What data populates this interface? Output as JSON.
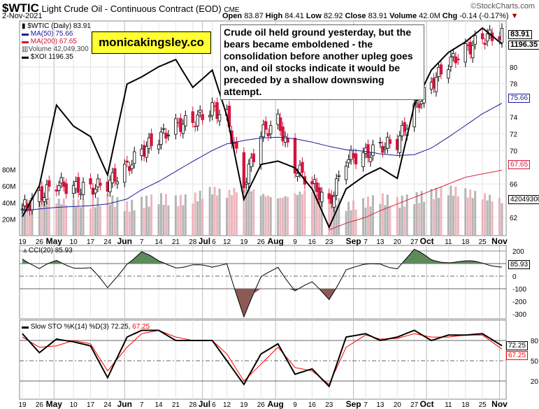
{
  "header": {
    "symbol": "$WTIC",
    "name": "Light Crude Oil - Continuous Contract (EOD)",
    "exchange": "CME",
    "date": "2-Nov-2021",
    "brand": "©StockCharts.com",
    "open_label": "Open",
    "open": "83.87",
    "high_label": "High",
    "high": "84.41",
    "low_label": "Low",
    "low": "82.92",
    "close_label": "Close",
    "close": "83.91",
    "volume_label": "Volume",
    "volume": "42.0M",
    "chg_label": "Chg",
    "chg": "-0.14 (-0.17%)"
  },
  "legend": {
    "price": "$WTIC (Daily) 83.91",
    "ma50": "MA(50) 75.66",
    "ma200": "MA(200) 67.65",
    "volume": "Volume 42,049,300",
    "xoi": "$XOI 1196.35"
  },
  "logo_text": "monicakingsley.co",
  "annotation": "Crude oil held ground yesterday, but the bears became emboldened - the consolidation before another upleg goes on, and oil stocks indicate it would be preceded by a shallow downswing attempt.",
  "tags": {
    "price": "83.91",
    "xoi": "1196.35",
    "ma50": "75.66",
    "ma200": "67.65",
    "volume": "42049300",
    "cci": "85.93",
    "k": "72.25",
    "d": "67.25"
  },
  "colors": {
    "up": "#000000",
    "down": "#d4143c",
    "ma50": "#1a1a9e",
    "ma200": "#e0203c",
    "vol_up": "#a8a8a8",
    "vol_down": "#eaa8b0",
    "cci_pos": "#5d8a5a",
    "cci_neg": "#8c5a55",
    "k": "#000000",
    "d": "#ff0000"
  },
  "cci_legend": "CCI(20) 85.93",
  "sto_legend_a": "Slow STO %K(14) %D(3) 72.25,",
  "sto_legend_b": "67.25",
  "chart_data": {
    "type": "candlestick",
    "dates": [
      "2021-04-19",
      "2021-04-26",
      "2021-05-03",
      "2021-05-10",
      "2021-05-17",
      "2021-05-24",
      "2021-06-01",
      "2021-06-07",
      "2021-06-14",
      "2021-06-21",
      "2021-06-28",
      "2021-07-06",
      "2021-07-12",
      "2021-07-19",
      "2021-07-26",
      "2021-08-02",
      "2021-08-09",
      "2021-08-16",
      "2021-08-23",
      "2021-08-30",
      "2021-09-07",
      "2021-09-13",
      "2021-09-20",
      "2021-09-27",
      "2021-10-04",
      "2021-10-11",
      "2021-10-18",
      "2021-10-25",
      "2021-11-02"
    ],
    "close": [
      63,
      64.5,
      66,
      65.5,
      65.5,
      66,
      68,
      70,
      71.5,
      73,
      73.5,
      75,
      74,
      66,
      72,
      73.5,
      68,
      66,
      63.5,
      69,
      69.5,
      70.5,
      71,
      75,
      78,
      80.5,
      82,
      83.5,
      83.91
    ],
    "ma50": [
      62.8,
      63,
      63.2,
      63.3,
      63.4,
      63.6,
      64.2,
      65.3,
      66.3,
      67.5,
      68.7,
      70,
      70.8,
      71.2,
      71.5,
      71.6,
      71.4,
      71,
      70.5,
      70.1,
      69.9,
      69.6,
      69.4,
      69.5,
      70.3,
      71.6,
      73,
      74.4,
      75.66
    ],
    "ma200": [
      null,
      null,
      null,
      null,
      null,
      null,
      null,
      null,
      null,
      null,
      null,
      null,
      null,
      null,
      null,
      null,
      null,
      null,
      60.5,
      61.3,
      62,
      62.8,
      63.6,
      64.4,
      65.2,
      66,
      66.8,
      67.2,
      67.65
    ],
    "volume_millions": [
      40,
      45,
      42,
      40,
      38,
      45,
      35,
      40,
      45,
      42,
      45,
      55,
      50,
      60,
      50,
      45,
      50,
      55,
      48,
      35,
      40,
      45,
      40,
      45,
      50,
      55,
      52,
      48,
      42.05
    ],
    "xoi": [
      737,
      820,
      1034,
      978,
      950,
      848,
      1090,
      1109,
      1136,
      1155,
      1081,
      1127,
      1006,
      783,
      876,
      885,
      867,
      811,
      709,
      811,
      848,
      867,
      839,
      1034,
      1127,
      1174,
      1202,
      1239,
      1196.35
    ],
    "cci": [
      150,
      50,
      120,
      80,
      60,
      -100,
      110,
      190,
      110,
      80,
      90,
      60,
      110,
      -320,
      -20,
      80,
      -110,
      -60,
      -180,
      60,
      80,
      100,
      70,
      200,
      130,
      120,
      110,
      100,
      85.93
    ],
    "sto_k": [
      90,
      62,
      82,
      78,
      72,
      25,
      85,
      95,
      95,
      80,
      80,
      80,
      50,
      15,
      60,
      75,
      30,
      38,
      12,
      85,
      90,
      80,
      85,
      95,
      80,
      88,
      88,
      90,
      72.25
    ],
    "sto_d": [
      85,
      70,
      72,
      80,
      75,
      35,
      70,
      90,
      95,
      85,
      80,
      80,
      60,
      20,
      45,
      70,
      40,
      35,
      15,
      70,
      88,
      82,
      83,
      90,
      85,
      85,
      88,
      88,
      67.25
    ],
    "price_ticks": [
      62,
      66,
      70,
      72,
      74,
      78,
      80
    ],
    "volume_ticks": [
      "20M",
      "40M",
      "60M",
      "80M"
    ],
    "cci_ticks": [
      200,
      0,
      -100,
      -200,
      -300
    ],
    "sto_ticks": [
      80,
      50,
      20
    ],
    "x_ticks": [
      {
        "label": "19",
        "date": "2021-04-19"
      },
      {
        "label": "26",
        "date": "2021-04-26"
      },
      {
        "label": "May",
        "date": "2021-05-02"
      },
      {
        "label": "10",
        "date": "2021-05-10"
      },
      {
        "label": "17",
        "date": "2021-05-17"
      },
      {
        "label": "24",
        "date": "2021-05-24"
      },
      {
        "label": "Jun",
        "date": "2021-05-31"
      },
      {
        "label": "7",
        "date": "2021-06-07"
      },
      {
        "label": "14",
        "date": "2021-06-14"
      },
      {
        "label": "21",
        "date": "2021-06-21"
      },
      {
        "label": "28",
        "date": "2021-06-28"
      },
      {
        "label": "Jul",
        "date": "2021-07-02"
      },
      {
        "label": "6",
        "date": "2021-07-06"
      },
      {
        "label": "12",
        "date": "2021-07-12"
      },
      {
        "label": "19",
        "date": "2021-07-19"
      },
      {
        "label": "26",
        "date": "2021-07-26"
      },
      {
        "label": "Aug",
        "date": "2021-08-01"
      },
      {
        "label": "9",
        "date": "2021-08-09"
      },
      {
        "label": "16",
        "date": "2021-08-16"
      },
      {
        "label": "23",
        "date": "2021-08-23"
      },
      {
        "label": "Sep",
        "date": "2021-09-02"
      },
      {
        "label": "7",
        "date": "2021-09-07"
      },
      {
        "label": "13",
        "date": "2021-09-13"
      },
      {
        "label": "20",
        "date": "2021-09-20"
      },
      {
        "label": "27",
        "date": "2021-09-27"
      },
      {
        "label": "Oct",
        "date": "2021-10-02"
      },
      {
        "label": "11",
        "date": "2021-10-11"
      },
      {
        "label": "18",
        "date": "2021-10-18"
      },
      {
        "label": "25",
        "date": "2021-10-25"
      },
      {
        "label": "Nov",
        "date": "2021-11-01"
      }
    ]
  }
}
